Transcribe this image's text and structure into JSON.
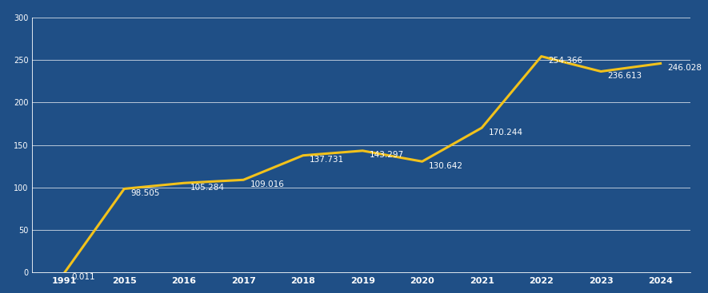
{
  "chart_data": {
    "type": "line",
    "categories": [
      "1991",
      "2015",
      "2016",
      "2017",
      "2018",
      "2019",
      "2020",
      "2021",
      "2022",
      "2023",
      "2024"
    ],
    "values": [
      0.011,
      98.505,
      105.284,
      109.016,
      137.731,
      143.297,
      130.642,
      170.244,
      254.366,
      236.613,
      246.028
    ],
    "color": "#f2c21b",
    "ylim": [
      0,
      300
    ],
    "yticks": [
      0,
      50,
      100,
      150,
      200,
      250,
      300
    ],
    "grid": true,
    "data_labels": true
  }
}
